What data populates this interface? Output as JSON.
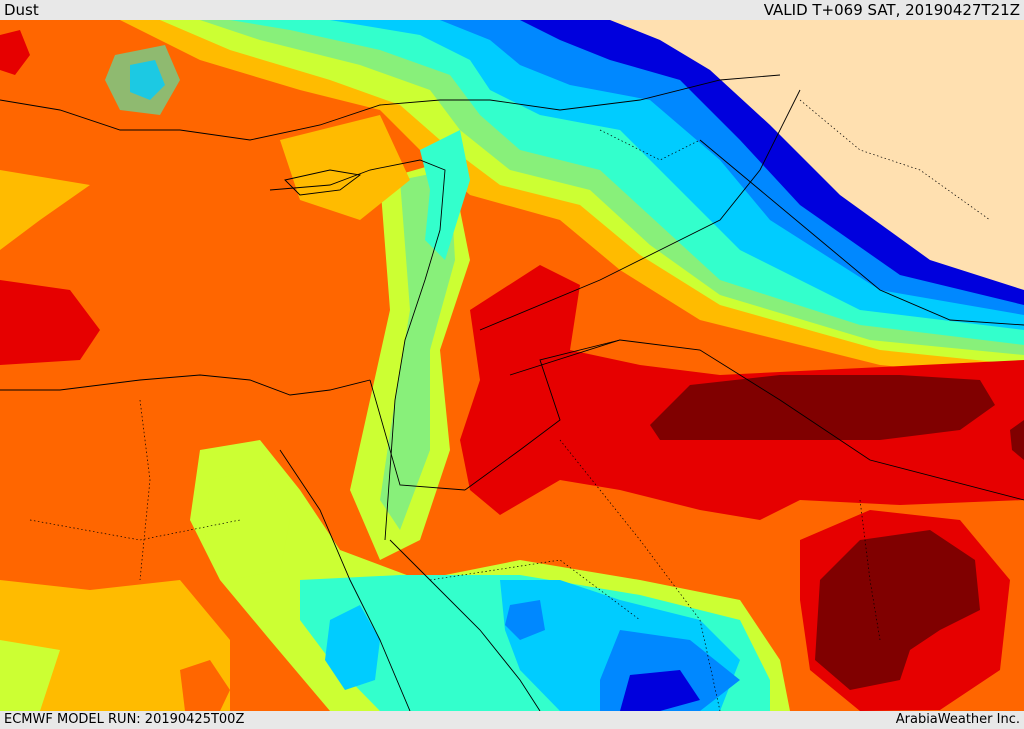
{
  "header": {
    "field_name": "Dust",
    "valid_time": "VALID T+069 SAT, 20190427T21Z"
  },
  "footer": {
    "model_run": "ECMWF MODEL RUN: 20190425T00Z",
    "provider": "ArabiaWeather Inc."
  },
  "palette": {
    "max": "#800000",
    "very_high": "#e60000",
    "high": "#ff6600",
    "elevated": "#ffbb00",
    "moderate": "#ccff33",
    "low_moderate": "#88f07a",
    "low": "#33ffcc",
    "very_low": "#00ccff",
    "minimal": "#0088ff",
    "clean": "#0000dd",
    "no_data": "#ffe0b0"
  }
}
